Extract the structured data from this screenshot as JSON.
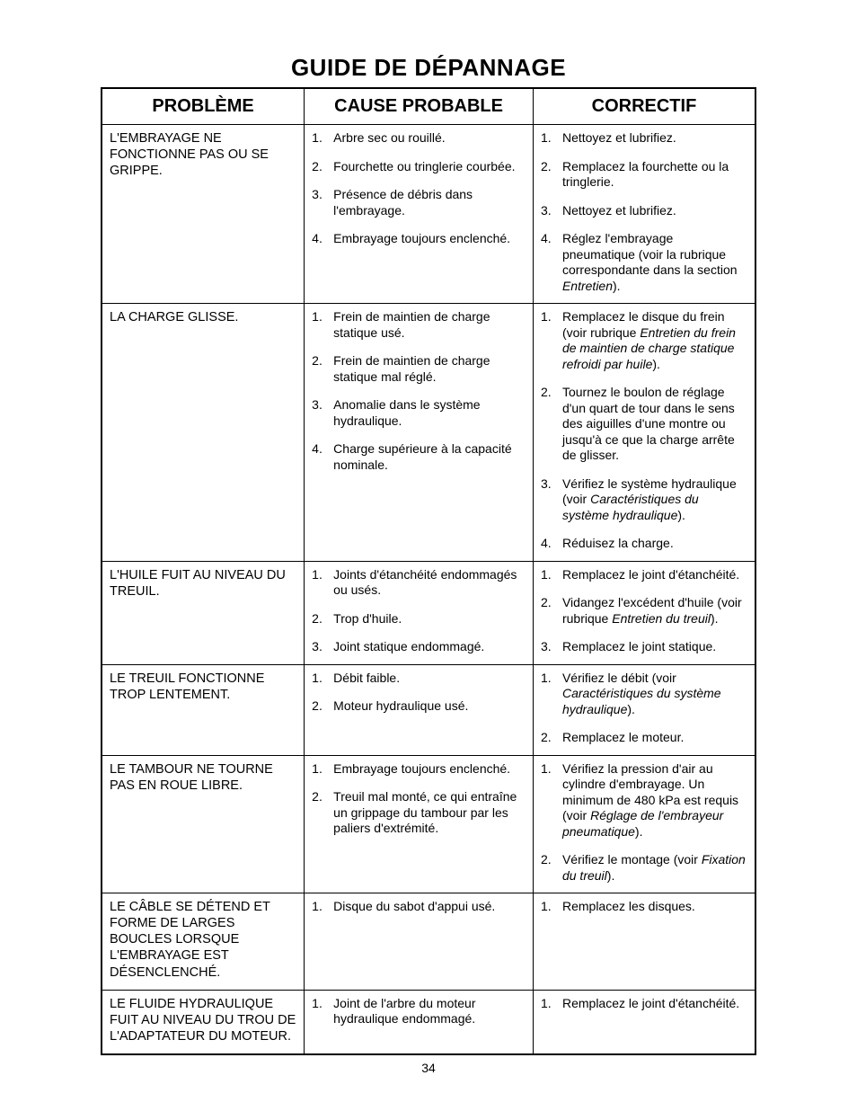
{
  "page_number": "34",
  "title": "GUIDE DE DÉPANNAGE",
  "headers": {
    "problem": "PROBLÈME",
    "cause": "CAUSE PROBABLE",
    "fix": "CORRECTIF"
  },
  "rows": [
    {
      "problem": "L'EMBRAYAGE NE FONCTIONNE PAS OU SE GRIPPE.",
      "causes": [
        "Arbre sec ou rouillé.",
        "Fourchette ou tringlerie courbée.",
        "Présence de débris dans l'embrayage.",
        "Embrayage toujours enclenché."
      ],
      "fixes": [
        "Nettoyez et lubrifiez.",
        "Remplacez la fourchette ou la tringlerie.",
        "Nettoyez et lubrifiez.",
        "Réglez l'embrayage pneumatique (voir la rubrique correspondante dans la section <em>Entretien</em>)."
      ]
    },
    {
      "problem": "LA CHARGE GLISSE.",
      "causes": [
        "Frein de maintien de charge statique usé.",
        "Frein de maintien de charge statique mal réglé.",
        "Anomalie dans le système hydraulique.",
        "Charge supérieure à la capacité nominale."
      ],
      "fixes": [
        "Remplacez le disque du frein (voir rubrique <em>Entretien du frein de maintien de charge statique refroidi par huile</em>).",
        "Tournez le boulon de réglage d'un quart de tour dans le sens des aiguilles d'une montre ou jusqu'à ce que la charge arrête de glisser.",
        "Vérifiez le système hydraulique (voir <em>Caractéristiques du système hydraulique</em>).",
        "Réduisez la charge."
      ]
    },
    {
      "problem": "L'HUILE FUIT AU NIVEAU DU TREUIL.",
      "causes": [
        "Joints d'étanchéité endommagés ou usés.",
        "Trop d'huile.",
        "Joint statique endommagé."
      ],
      "fixes": [
        "Remplacez le joint d'étanchéité.",
        "Vidangez l'excédent d'huile (voir rubrique <em>Entretien du treuil</em>).",
        "Remplacez le joint statique."
      ]
    },
    {
      "problem": "LE TREUIL FONCTIONNE TROP LENTEMENT.",
      "causes": [
        "Débit faible.",
        "Moteur hydraulique usé."
      ],
      "fixes": [
        "Vérifiez le débit (voir <em>Caractéristiques du système hydraulique</em>).",
        "Remplacez le moteur."
      ]
    },
    {
      "problem": "LE TAMBOUR NE TOURNE PAS EN ROUE LIBRE.",
      "causes": [
        "Embrayage toujours enclenché.",
        "Treuil mal monté, ce qui entraîne un grippage du tambour par les paliers d'extrémité."
      ],
      "fixes": [
        "Vérifiez la pression d'air au cylindre d'embrayage. Un minimum de 480 kPa est requis (voir <em>Réglage de l'embrayeur pneumatique</em>).",
        "Vérifiez le montage (voir <em>Fixation du treuil</em>)."
      ]
    },
    {
      "problem": "LE CÂBLE SE DÉTEND ET FORME DE LARGES BOUCLES LORSQUE L'EMBRAYAGE EST DÉSENCLENCHÉ.",
      "causes": [
        "Disque du sabot d'appui usé."
      ],
      "fixes": [
        "Remplacez les disques."
      ]
    },
    {
      "problem": "LE FLUIDE HYDRAULIQUE FUIT AU NIVEAU DU TROU DE L'ADAPTATEUR DU MOTEUR.",
      "causes": [
        "Joint de l'arbre du moteur hydraulique endommagé."
      ],
      "fixes": [
        "Remplacez le joint d'étanchéité."
      ]
    }
  ]
}
